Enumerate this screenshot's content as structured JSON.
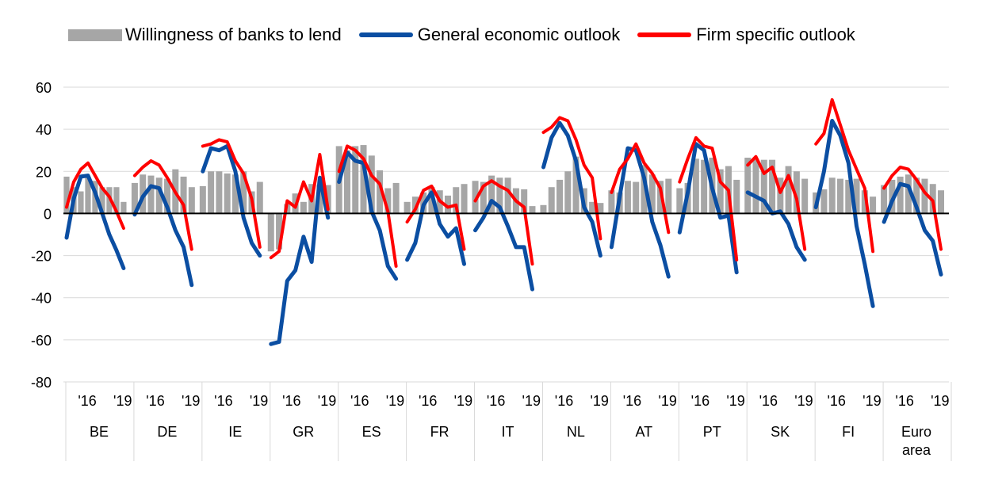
{
  "legend": {
    "bars_label": "Willingness of banks to lend",
    "general_label": "General economic outlook",
    "firm_label": "Firm specific outlook"
  },
  "colors": {
    "bars": "#a6a6a6",
    "general": "#0b4ea2",
    "firm": "#ff0000",
    "grid": "#d9d9d9",
    "zero_line": "#000000"
  },
  "chart_data": {
    "type": "bar",
    "ylim": [
      -80,
      60
    ],
    "yticks": [
      60,
      40,
      20,
      0,
      -20,
      -40,
      -60,
      -80
    ],
    "grid": true,
    "legend_position": "top",
    "year_tick_labels": [
      "'16",
      "'19"
    ],
    "groups": [
      {
        "label": [
          "BE"
        ],
        "bars": [
          17.5,
          12.5,
          10.5,
          17.5,
          15.5,
          12.5,
          12.5,
          12.5,
          5.5
        ],
        "general": [
          -11.5,
          7,
          17.5,
          18,
          10,
          0,
          -10,
          -17.5,
          -26
        ],
        "firm": [
          3,
          15,
          21,
          24,
          18,
          12,
          8,
          1,
          -7
        ]
      },
      {
        "label": [
          "DE"
        ],
        "bars": [
          14.5,
          18.5,
          18,
          17,
          16.5,
          21,
          17.5,
          12.5
        ],
        "general": [
          -0.5,
          8,
          13,
          12,
          3,
          -8,
          -16,
          -34
        ],
        "firm": [
          18,
          22,
          25,
          23,
          17,
          10,
          4,
          -17
        ]
      },
      {
        "label": [
          "IE"
        ],
        "bars": [
          13,
          20,
          20,
          19,
          18.5,
          20,
          10.5,
          15
        ],
        "general": [
          20,
          31,
          30,
          32,
          20,
          -2,
          -14,
          -20
        ],
        "firm": [
          32,
          33,
          35,
          34,
          25,
          19,
          7,
          -16
        ]
      },
      {
        "label": [
          "GR"
        ],
        "bars": [
          -18,
          -17,
          4.5,
          9.5,
          5.5,
          14,
          13.5,
          13.5
        ],
        "general": [
          -62,
          -61,
          -32,
          -27,
          -11,
          -23,
          17,
          -2
        ],
        "firm": [
          -21,
          -18,
          6,
          3,
          15,
          6,
          28,
          2
        ]
      },
      {
        "label": [
          "ES"
        ],
        "bars": [
          32,
          30,
          32,
          32.5,
          27.5,
          20.5,
          12,
          14.5
        ],
        "general": [
          15,
          29,
          25,
          24,
          1,
          -8,
          -25,
          -31
        ],
        "firm": [
          20,
          32,
          30,
          26,
          18,
          14,
          1,
          -25
        ]
      },
      {
        "label": [
          "FR"
        ],
        "bars": [
          5.5,
          8,
          10,
          12.5,
          11,
          8.5,
          12.5,
          14
        ],
        "general": [
          -22,
          -14,
          4,
          10,
          -5,
          -11,
          -7,
          -24
        ],
        "firm": [
          -4,
          2,
          11,
          13,
          6,
          3,
          4,
          -17
        ]
      },
      {
        "label": [
          "IT"
        ],
        "bars": [
          15.5,
          15,
          18,
          17,
          17,
          12,
          11.5,
          3.5
        ],
        "general": [
          -8,
          -2,
          6,
          3,
          -6,
          -16,
          -16,
          -36
        ],
        "firm": [
          6,
          13,
          15.5,
          13,
          11,
          6,
          3,
          -24
        ]
      },
      {
        "label": [
          "NL"
        ],
        "bars": [
          4,
          12.5,
          16,
          20,
          27,
          12,
          5.5,
          5
        ],
        "general": [
          22,
          36,
          43,
          37,
          25,
          3,
          -4,
          -20
        ],
        "firm": [
          38.5,
          41,
          45.5,
          44,
          35,
          23,
          17,
          -12
        ]
      },
      {
        "label": [
          "AT"
        ],
        "bars": [
          11,
          10,
          15.5,
          15,
          23,
          18.5,
          15.5,
          16.5
        ],
        "general": [
          -16,
          8,
          31,
          30,
          17,
          -4,
          -15,
          -30
        ],
        "firm": [
          10,
          21,
          26,
          33,
          24,
          19,
          12,
          -9
        ]
      },
      {
        "label": [
          "PT"
        ],
        "bars": [
          12,
          14.5,
          26,
          25.5,
          26.5,
          21,
          22.5,
          16
        ],
        "general": [
          -9,
          10,
          33,
          30,
          12,
          -2,
          -1,
          -28
        ],
        "firm": [
          15,
          26,
          36,
          32,
          31,
          15,
          11,
          -22
        ]
      },
      {
        "label": [
          "SK"
        ],
        "bars": [
          26.5,
          25.5,
          25.5,
          25.5,
          17,
          22.5,
          20,
          16.5
        ],
        "general": [
          10,
          8,
          6,
          0,
          1,
          -5,
          -16,
          -22
        ],
        "firm": [
          23,
          27,
          19,
          22,
          10,
          18,
          7,
          -17
        ]
      },
      {
        "label": [
          "FI"
        ],
        "bars": [
          10,
          11.5,
          17,
          16.5,
          16,
          16.5,
          11,
          8
        ],
        "general": [
          3,
          20,
          44,
          37,
          24,
          -6,
          -24,
          -44
        ],
        "firm": [
          33,
          38,
          54,
          42,
          30,
          21,
          12,
          -18
        ]
      },
      {
        "label": [
          "Euro",
          "area"
        ],
        "bars": [
          13.5,
          16,
          17.5,
          18.5,
          17,
          16.5,
          14,
          11
        ],
        "general": [
          -4,
          6,
          14,
          13,
          3,
          -8,
          -13,
          -29
        ],
        "firm": [
          12,
          18,
          22,
          21,
          16,
          10,
          6,
          -17
        ]
      }
    ]
  }
}
